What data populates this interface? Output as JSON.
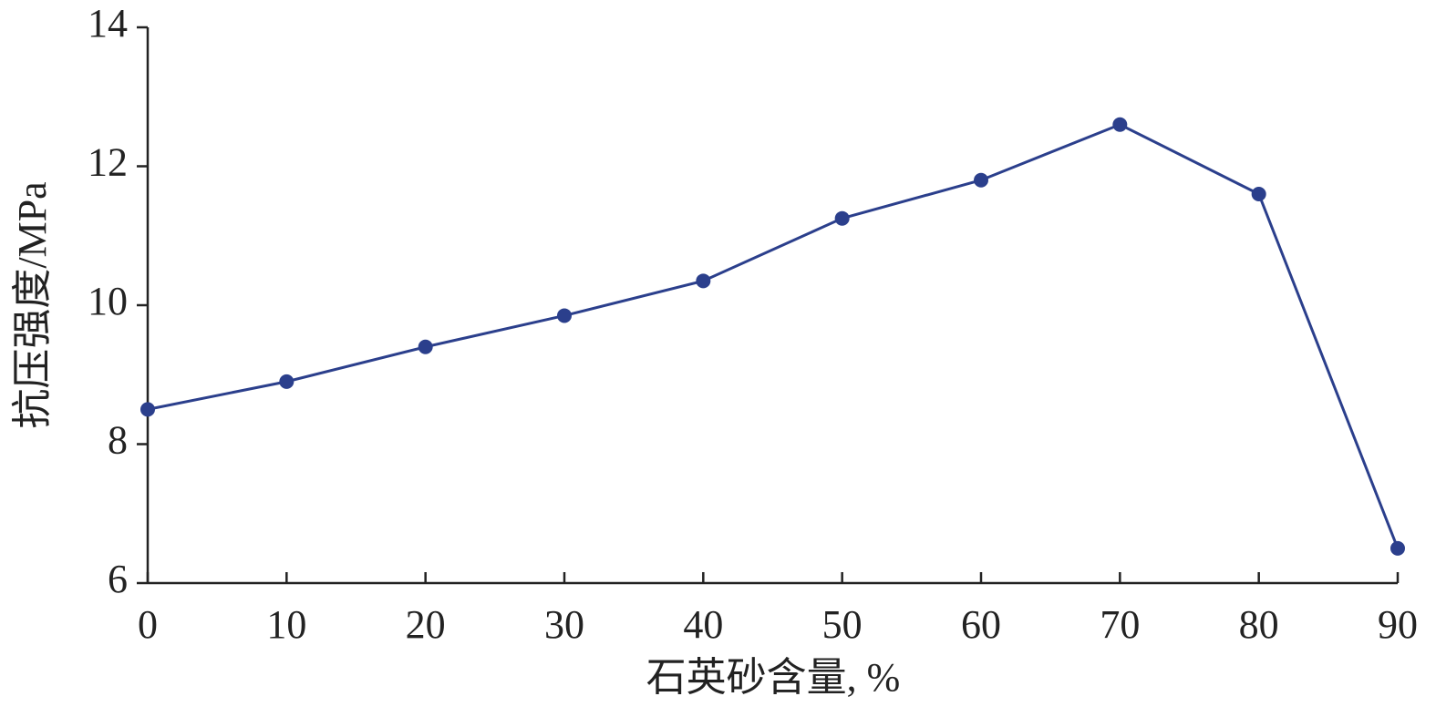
{
  "chart_data": {
    "type": "line",
    "y_label": "抗压强度/MPa",
    "x_label": "石英砂含量, %",
    "x": [
      0,
      10,
      20,
      30,
      40,
      50,
      60,
      70,
      80,
      90
    ],
    "series": [
      {
        "color": "#2b3f8c",
        "values": [
          8.5,
          8.9,
          9.4,
          9.85,
          10.35,
          11.25,
          11.8,
          12.6,
          11.6,
          6.5
        ]
      }
    ],
    "xlim": [
      0,
      90
    ],
    "xticks": [
      0,
      10,
      20,
      30,
      40,
      50,
      60,
      70,
      80,
      90
    ],
    "ylim": [
      6,
      14
    ],
    "yticks": [
      6,
      8,
      10,
      12,
      14
    ],
    "grid": false
  }
}
